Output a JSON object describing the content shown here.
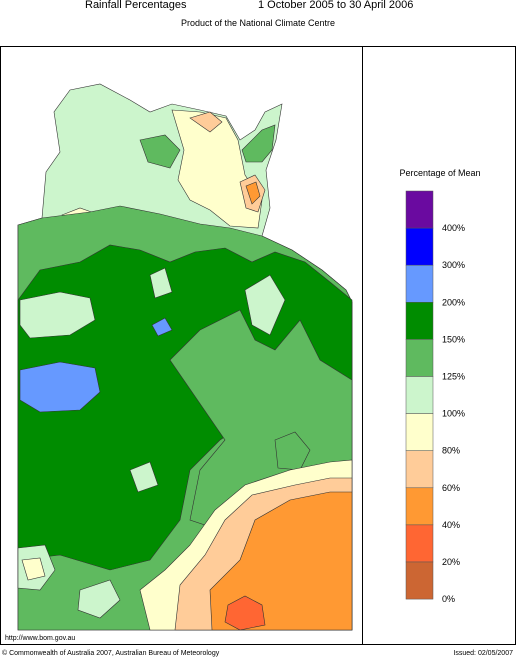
{
  "header": {
    "title": "Rainfall Percentages",
    "period": "1 October 2005 to 30 April 2006",
    "subtitle": "Product of the National Climate Centre"
  },
  "legend": {
    "title": "Percentage of Mean",
    "colors": [
      "#6a0aa0",
      "#0000ff",
      "#6699ff",
      "#008c00",
      "#5fba5f",
      "#ccf5cc",
      "#ffffcc",
      "#ffcc99",
      "#ff9933",
      "#ff6633",
      "#cc6633"
    ],
    "labels": [
      "400%",
      "300%",
      "200%",
      "150%",
      "125%",
      "100%",
      "80%",
      "60%",
      "40%",
      "20%",
      "0%"
    ]
  },
  "footer": {
    "url": "http://www.bom.gov.au",
    "copyright": "© Commonwealth of Australia 2007, Australian Bureau of Meteorology",
    "issued": "Issued: 02/05/2007"
  }
}
